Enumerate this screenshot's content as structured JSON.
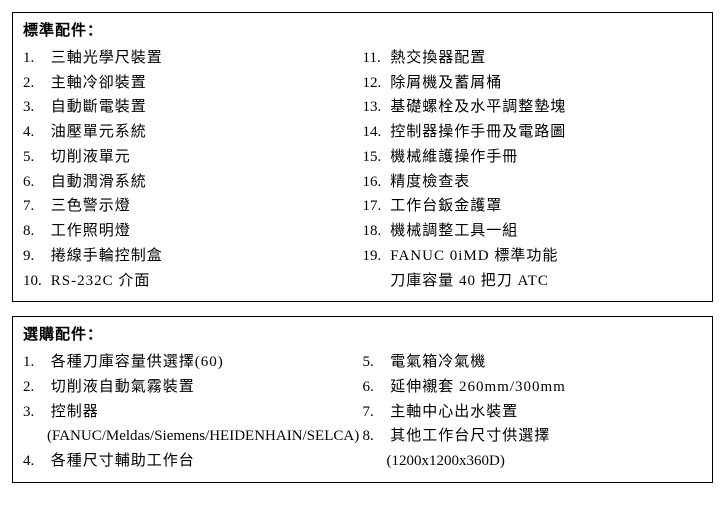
{
  "standard": {
    "title": "標準配件：",
    "left": [
      {
        "n": "1.",
        "t": "三軸光學尺裝置"
      },
      {
        "n": "2.",
        "t": "主軸冷卻裝置"
      },
      {
        "n": "3.",
        "t": "自動斷電裝置"
      },
      {
        "n": "4.",
        "t": "油壓單元系統"
      },
      {
        "n": "5.",
        "t": "切削液單元"
      },
      {
        "n": "6.",
        "t": "自動潤滑系統"
      },
      {
        "n": "7.",
        "t": "三色警示燈"
      },
      {
        "n": "8.",
        "t": "工作照明燈"
      },
      {
        "n": "9.",
        "t": "捲線手輪控制盒"
      },
      {
        "n": "10.",
        "t": "RS-232C 介面"
      }
    ],
    "right": [
      {
        "n": "11.",
        "t": "熱交換器配置"
      },
      {
        "n": "12.",
        "t": "除屑機及蓄屑桶"
      },
      {
        "n": "13.",
        "t": "基礎螺栓及水平調整墊塊"
      },
      {
        "n": "14.",
        "t": "控制器操作手冊及電路圖"
      },
      {
        "n": "15.",
        "t": "機械維護操作手冊"
      },
      {
        "n": "16.",
        "t": "精度檢查表"
      },
      {
        "n": "17.",
        "t": "工作台鈑金護罩"
      },
      {
        "n": "18.",
        "t": "機械調整工具一組"
      },
      {
        "n": "19.",
        "t": "FANUC 0iMD 標準功能"
      },
      {
        "n": "",
        "t": "刀庫容量 40 把刀 ATC"
      }
    ]
  },
  "optional": {
    "title": "選購配件：",
    "left": [
      {
        "n": "1.",
        "t": "各種刀庫容量供選擇(60)"
      },
      {
        "n": "2.",
        "t": "切削液自動氣霧裝置"
      },
      {
        "n": "3.",
        "t": "控制器"
      },
      {
        "indent": true,
        "t": "(FANUC/Meldas/Siemens/HEIDENHAIN/SELCA)"
      },
      {
        "n": "4.",
        "t": "各種尺寸輔助工作台"
      }
    ],
    "right": [
      {
        "n": "5.",
        "t": "電氣箱冷氣機"
      },
      {
        "n": "6.",
        "t": "延伸襯套 260mm/300mm"
      },
      {
        "n": "7.",
        "t": "主軸中心出水裝置"
      },
      {
        "n": "8.",
        "t": "其他工作台尺寸供選擇"
      },
      {
        "indent": true,
        "t": "(1200x1200x360D)"
      }
    ]
  }
}
